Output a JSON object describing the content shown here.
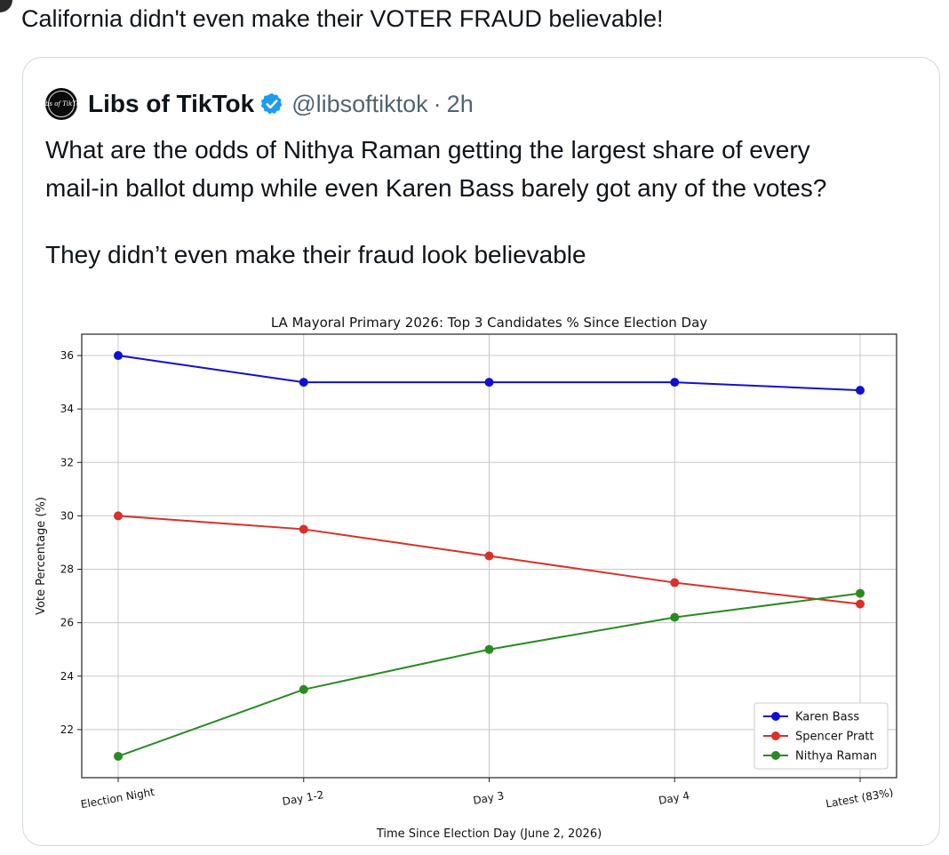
{
  "post": {
    "text": "California didn't even make their VOTER FRAUD believable!"
  },
  "quote": {
    "author_name": "Libs of TikTok",
    "handle": "@libsoftiktok",
    "separator": "·",
    "time": "2h",
    "avatar_text": "Libs of TikTok",
    "body_line1": "What are the odds of Nithya Raman getting the largest share of every",
    "body_line2": "mail-in ballot dump while even Karen Bass barely got any of the votes?",
    "body_line3": "They didn’t even make their fraud look believable"
  },
  "colors": {
    "verified": "#1d9bf0",
    "karen": "#1010d0",
    "spencer": "#d8302a",
    "nithya": "#2a8a22"
  },
  "icons": {
    "verified": "verified-badge-icon"
  },
  "chart_data": {
    "type": "line",
    "title": "LA Mayoral Primary 2026: Top 3 Candidates % Since Election Day",
    "xlabel": "Time Since Election Day (June 2, 2026)",
    "ylabel": "Vote Percentage (%)",
    "categories": [
      "Election Night",
      "Day 1-2",
      "Day 3",
      "Day 4",
      "Latest (83%)"
    ],
    "ylim": [
      20.2,
      36.8
    ],
    "yticks": [
      22,
      24,
      26,
      28,
      30,
      32,
      34,
      36
    ],
    "grid": true,
    "legend_position": "bottom-right",
    "series": [
      {
        "name": "Karen Bass",
        "color": "#1010d0",
        "values": [
          36,
          35,
          35,
          35,
          34.7
        ]
      },
      {
        "name": "Spencer Pratt",
        "color": "#d8302a",
        "values": [
          30,
          29.5,
          28.5,
          27.5,
          26.7
        ]
      },
      {
        "name": "Nithya Raman",
        "color": "#2a8a22",
        "values": [
          21,
          23.5,
          25,
          26.2,
          27.1
        ]
      }
    ]
  }
}
